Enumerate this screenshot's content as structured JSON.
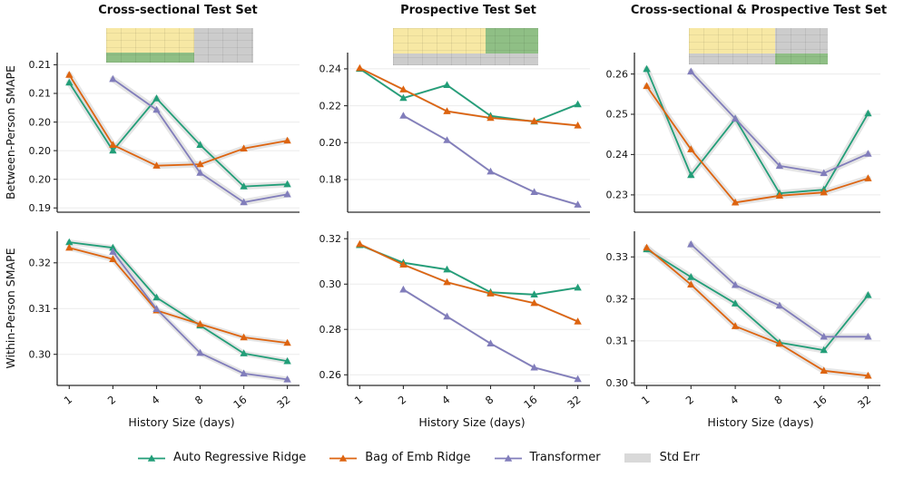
{
  "figure_title": "SMAPE vs History Size model comparison",
  "chart_data": {
    "type": "line",
    "x": [
      1,
      2,
      4,
      8,
      16,
      32
    ],
    "x_tick_labels": [
      "1",
      "2",
      "4",
      "8",
      "16",
      "32"
    ],
    "x_scale": "log2",
    "xlabel": "History Size (days)",
    "grid": "horizontal",
    "col_titles": [
      "Cross-sectional Test Set",
      "Prospective Test Set",
      "Cross-sectional & Prospective Test Set"
    ],
    "row_ylabels": [
      "Between-Person SMAPE",
      "Within-Person SMAPE"
    ],
    "legend_position": "bottom-center",
    "legend": [
      {
        "name": "Auto Regressive Ridge",
        "color": "#229e78",
        "marker": "triangle-up"
      },
      {
        "name": "Bag of Emb Ridge",
        "color": "#dd6410",
        "marker": "triangle-up"
      },
      {
        "name": "Transformer",
        "color": "#817dbb",
        "marker": "triangle-up"
      },
      {
        "name": "Std Err",
        "color": "#d9d9d9",
        "marker": "band"
      }
    ],
    "band_color": "#d3d3d3",
    "inset_colors": {
      "yellow": "#f7e8a4",
      "green": "#8fbf85",
      "gray": "#cccccc"
    },
    "subplots": [
      {
        "title": "Cross-sectional Test Set",
        "ylabel": "Between-Person SMAPE",
        "ylim": [
          0.1914,
          0.2137
        ],
        "yticks": [
          0.212,
          0.208,
          0.204,
          0.2,
          0.196,
          0.192
        ],
        "ytick_labels": [
          "0.21",
          "0.21",
          "0.20",
          "0.20",
          "0.20",
          "0.19"
        ],
        "band_width": 7,
        "series": [
          {
            "name": "Auto Regressive Ridge",
            "values": [
              0.2095,
              0.2,
              0.2073,
              0.2008,
              0.195,
              0.1953
            ]
          },
          {
            "name": "Bag of Emb Ridge",
            "values": [
              0.2106,
              0.2008,
              0.1979,
              0.1981,
              0.2003,
              0.2014
            ]
          },
          {
            "name": "Transformer",
            "values": [
              null,
              0.21,
              0.2057,
              0.1969,
              0.1928,
              0.1939
            ]
          }
        ],
        "inset": {
          "left_frac": 0.6,
          "rows": [
            {
              "h": 0.71,
              "left": "yellow",
              "right": "gray"
            },
            {
              "h": 0.29,
              "left": "green",
              "right": "gray"
            }
          ]
        }
      },
      {
        "title": "Prospective Test Set",
        "ylabel": "Between-Person SMAPE",
        "ylim": [
          0.1623,
          0.2488
        ],
        "yticks": [
          0.24,
          0.22,
          0.2,
          0.18
        ],
        "ytick_labels": [
          "0.24",
          "0.22",
          "0.20",
          "0.18"
        ],
        "band_width": 2.5,
        "series": [
          {
            "name": "Auto Regressive Ridge",
            "values": [
              0.24,
              0.2242,
              0.2312,
              0.2145,
              0.2114,
              0.2208
            ]
          },
          {
            "name": "Bag of Emb Ridge",
            "values": [
              0.2404,
              0.2288,
              0.217,
              0.2134,
              0.2116,
              0.2093
            ]
          },
          {
            "name": "Transformer",
            "values": [
              null,
              0.2146,
              0.2013,
              0.1843,
              0.1732,
              0.1664
            ]
          }
        ],
        "inset": {
          "left_frac": 0.64,
          "rows": [
            {
              "h": 0.68,
              "left": "yellow",
              "right": "green"
            },
            {
              "h": 0.32,
              "left": "gray",
              "right": "gray"
            }
          ]
        }
      },
      {
        "title": "Cross-sectional & Prospective Test Set",
        "ylabel": "Between-Person SMAPE",
        "ylim": [
          0.2257,
          0.2653
        ],
        "yticks": [
          0.26,
          0.25,
          0.24,
          0.23
        ],
        "ytick_labels": [
          "0.26",
          "0.25",
          "0.24",
          "0.23"
        ],
        "band_width": 7,
        "series": [
          {
            "name": "Auto Regressive Ridge",
            "values": [
              0.2612,
              0.2349,
              0.2489,
              0.2304,
              0.2313,
              0.2502
            ]
          },
          {
            "name": "Bag of Emb Ridge",
            "values": [
              0.257,
              0.2413,
              0.2281,
              0.2298,
              0.2306,
              0.2341
            ]
          },
          {
            "name": "Transformer",
            "values": [
              null,
              0.2606,
              0.2489,
              0.2372,
              0.2354,
              0.2402
            ]
          }
        ],
        "inset": {
          "left_frac": 0.62,
          "rows": [
            {
              "h": 0.7,
              "left": "yellow",
              "right": "gray"
            },
            {
              "h": 0.3,
              "left": "gray",
              "right": "green"
            }
          ]
        }
      },
      {
        "title": "",
        "ylabel": "Within-Person SMAPE",
        "ylim": [
          0.2932,
          0.3269
        ],
        "yticks": [
          0.32,
          0.31,
          0.3
        ],
        "ytick_labels": [
          "0.32",
          "0.31",
          "0.30"
        ],
        "band_width": 6,
        "series": [
          {
            "name": "Auto Regressive Ridge",
            "values": [
              0.3245,
              0.3233,
              0.3124,
              0.3063,
              0.3002,
              0.2985
            ]
          },
          {
            "name": "Bag of Emb Ridge",
            "values": [
              0.3233,
              0.3208,
              0.3096,
              0.3066,
              0.3037,
              0.3025
            ]
          },
          {
            "name": "Transformer",
            "values": [
              null,
              0.3224,
              0.3099,
              0.3003,
              0.2958,
              0.2945
            ]
          }
        ],
        "inset": null
      },
      {
        "title": "",
        "ylabel": "Within-Person SMAPE",
        "ylim": [
          0.2553,
          0.3233
        ],
        "yticks": [
          0.32,
          0.3,
          0.28,
          0.26
        ],
        "ytick_labels": [
          "0.32",
          "0.30",
          "0.28",
          "0.26"
        ],
        "band_width": 2.5,
        "series": [
          {
            "name": "Auto Regressive Ridge",
            "values": [
              0.3172,
              0.3094,
              0.3064,
              0.2964,
              0.2954,
              0.2984
            ]
          },
          {
            "name": "Bag of Emb Ridge",
            "values": [
              0.3176,
              0.3086,
              0.3008,
              0.2958,
              0.2916,
              0.2835
            ]
          },
          {
            "name": "Transformer",
            "values": [
              null,
              0.2976,
              0.2857,
              0.2738,
              0.2632,
              0.2581
            ]
          }
        ],
        "inset": null
      },
      {
        "title": "",
        "ylabel": "Within-Person SMAPE",
        "ylim": [
          0.2994,
          0.3361
        ],
        "yticks": [
          0.33,
          0.32,
          0.31,
          0.3
        ],
        "ytick_labels": [
          "0.33",
          "0.32",
          "0.31",
          "0.30"
        ],
        "band_width": 7,
        "series": [
          {
            "name": "Auto Regressive Ridge",
            "values": [
              0.3318,
              0.3252,
              0.3189,
              0.3096,
              0.3078,
              0.3209
            ]
          },
          {
            "name": "Bag of Emb Ridge",
            "values": [
              0.3322,
              0.3234,
              0.3135,
              0.3093,
              0.3029,
              0.3017
            ]
          },
          {
            "name": "Transformer",
            "values": [
              null,
              0.333,
              0.3233,
              0.3184,
              0.311,
              0.311
            ]
          }
        ],
        "inset": null
      }
    ]
  }
}
